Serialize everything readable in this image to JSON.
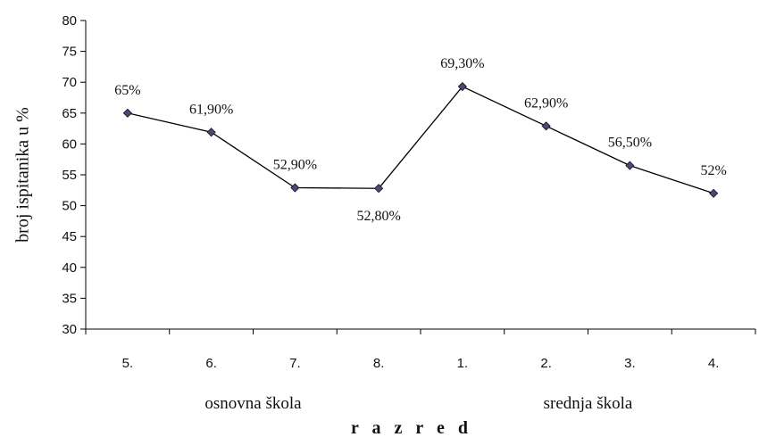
{
  "chart_data": {
    "type": "line",
    "title": "",
    "ylabel": "broj ispitanika u %",
    "xlabel": "r a z r e d",
    "ylim": [
      30,
      80
    ],
    "y_ticks": [
      "30",
      "35",
      "40",
      "45",
      "50",
      "55",
      "60",
      "65",
      "70",
      "75",
      "80"
    ],
    "categories": [
      "5.",
      "6.",
      "7.",
      "8.",
      "1.",
      "2.",
      "3.",
      "4."
    ],
    "groups": [
      {
        "label": "osnovna škola",
        "categories": [
          "5.",
          "6.",
          "7.",
          "8."
        ]
      },
      {
        "label": "srednja škola",
        "categories": [
          "1.",
          "2.",
          "3.",
          "4."
        ]
      }
    ],
    "series": [
      {
        "values": [
          65,
          61.9,
          52.9,
          52.8,
          69.3,
          62.9,
          56.5,
          52
        ],
        "data_labels": [
          "65%",
          "61,90%",
          "52,90%",
          "52,80%",
          "69,30%",
          "62,90%",
          "56,50%",
          "52%"
        ]
      }
    ],
    "grid": false,
    "legend": "none",
    "colors": {
      "line": "#000000",
      "marker": "#4a4a7a",
      "marker_stroke": "#111111",
      "axis": "#000000"
    }
  }
}
